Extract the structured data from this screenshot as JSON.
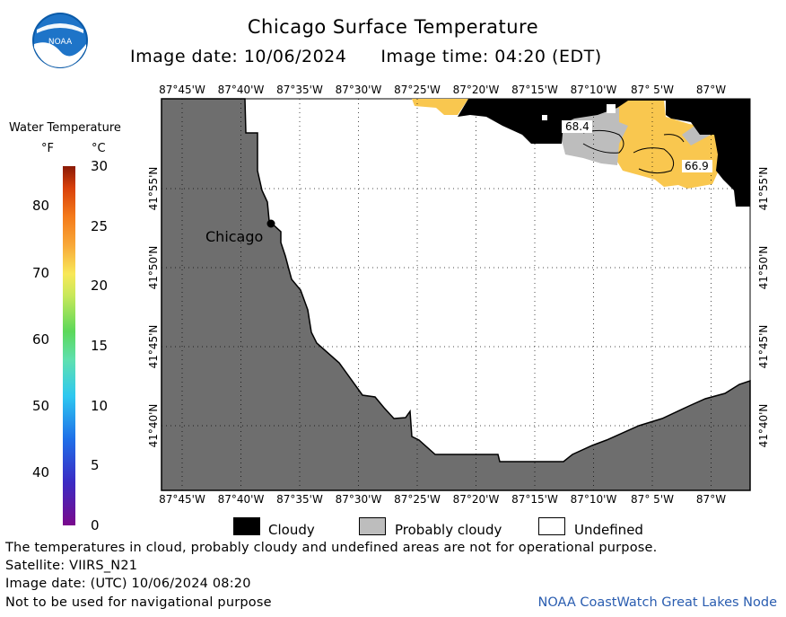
{
  "title": "Chicago Surface Temperature",
  "image_date_local": "Image date: 10/06/2024",
  "image_time_local": "Image time: 04:20 (EDT)",
  "logo_text": "NOAA",
  "legend": {
    "title": "Water Temperature",
    "unit_f": "°F",
    "unit_c": "°C",
    "ticks_f": [
      "80",
      "70",
      "60",
      "50",
      "40"
    ],
    "ticks_f_values": [
      80,
      70,
      60,
      50,
      40
    ],
    "ticks_c": [
      "30",
      "25",
      "20",
      "15",
      "10",
      "5",
      "0"
    ],
    "ticks_c_values": [
      30,
      25,
      20,
      15,
      10,
      5,
      0
    ],
    "range_c": [
      0,
      30
    ]
  },
  "map": {
    "lon_labels": [
      "87°45'W",
      "87°40'W",
      "87°35'W",
      "87°30'W",
      "87°25'W",
      "87°20'W",
      "87°15'W",
      "87°10'W",
      "87° 5'W",
      "87°W"
    ],
    "lat_labels": [
      "41°55'N",
      "41°50'N",
      "41°45'N",
      "41°40'N"
    ],
    "city_label": "Chicago",
    "contour_labels": [
      "68.4",
      "66.9"
    ],
    "colors": {
      "land": "#6e6e6e",
      "cloudy": "#000000",
      "probably_cloudy": "#bdbdbd",
      "undefined": "#ffffff",
      "warm_water": "#f9c74f"
    }
  },
  "key": {
    "cloudy": "Cloudy",
    "probably_cloudy": "Probably cloudy",
    "undefined": "Undefined"
  },
  "footer": {
    "line1": "The temperatures in cloud, probably cloudy and undefined areas are not for operational purpose.",
    "line2": "Satellite: VIIRS_N21",
    "line3": "Image date: (UTC) 10/06/2024  08:20",
    "line4": "Not to be used for navigational purpose",
    "credit": "NOAA CoastWatch Great Lakes Node"
  }
}
